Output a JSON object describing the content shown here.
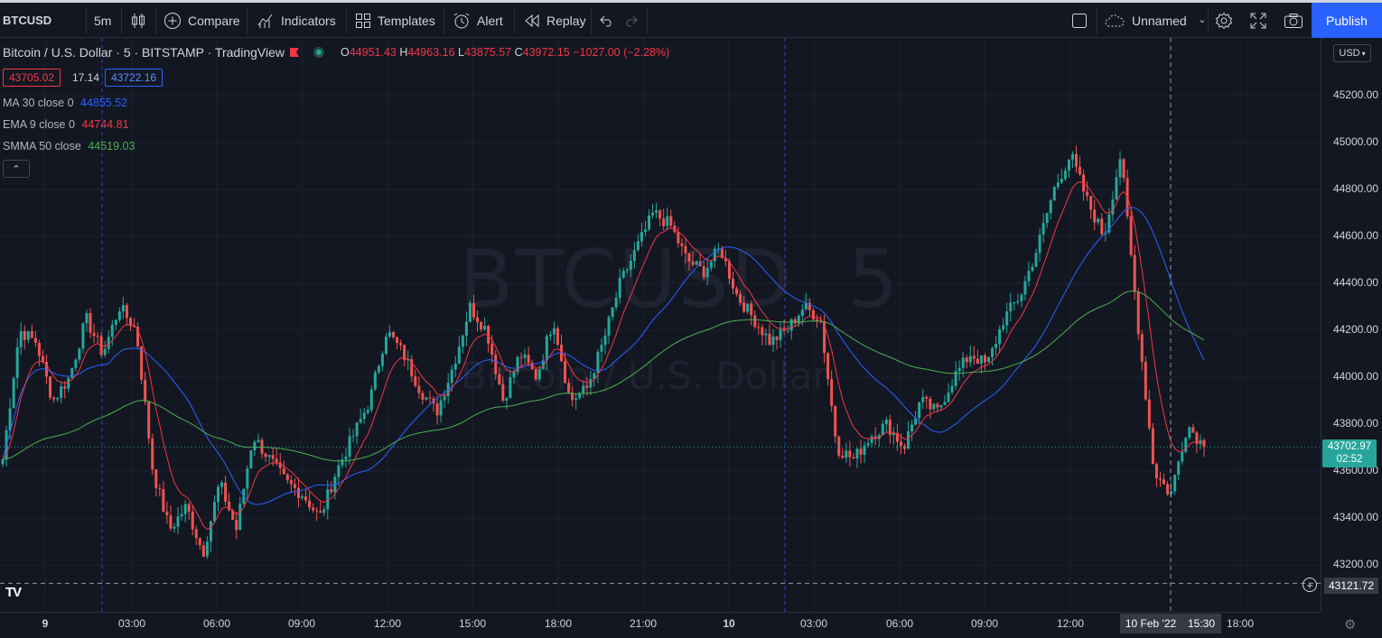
{
  "toolbar": {
    "symbol": "BTCUSD",
    "interval": "5m",
    "compare": "Compare",
    "indicators": "Indicators",
    "templates": "Templates",
    "alert": "Alert",
    "replay": "Replay",
    "layout_name": "Unnamed",
    "publish": "Publish"
  },
  "legend": {
    "title": "Bitcoin / U.S. Dollar · 5 · BITSTAMP · TradingView",
    "o_label": "O",
    "o": "44951.43",
    "h_label": "H",
    "h": "44963.16",
    "l_label": "L",
    "l": "43875.57",
    "c_label": "C",
    "c": "43972.15",
    "change": "−1027.00 (−2.28%)",
    "bid": "43705.02",
    "spread": "17.14",
    "ask": "43722.16"
  },
  "indicators": [
    {
      "label": "MA 30 close 0",
      "value": "44855.52",
      "color": "#2962ff"
    },
    {
      "label": "EMA 9 close 0",
      "value": "44744.81",
      "color": "#f23645"
    },
    {
      "label": "SMMA 50 close",
      "value": "44519.03",
      "color": "#4caf50"
    }
  ],
  "watermark": {
    "symbol": "BTCUSD, 5",
    "name": "Bitcoin / U.S. Dollar"
  },
  "price_axis": {
    "currency": "USD",
    "ticks": [
      "45200.00",
      "45000.00",
      "44800.00",
      "44600.00",
      "44400.00",
      "44200.00",
      "44000.00",
      "43800.00",
      "43600.00",
      "43400.00",
      "43200.00"
    ],
    "current_price": "43702.97",
    "countdown": "02:52",
    "crosshair_price": "43121.72"
  },
  "time_axis": {
    "ticks": [
      "9",
      "03:00",
      "06:00",
      "09:00",
      "12:00",
      "15:00",
      "18:00",
      "21:00",
      "10",
      "03:00",
      "06:00",
      "09:00",
      "12:00",
      "18:00"
    ],
    "crosshair_date": "10 Feb '22",
    "crosshair_time": "15:30"
  },
  "colors": {
    "up": "#26a69a",
    "down": "#ef5350",
    "background": "#131722",
    "accent": "#2962ff"
  },
  "chart_data": {
    "type": "candlestick",
    "ylim": [
      43100,
      45300
    ],
    "close_path": [
      43650,
      44200,
      44150,
      43900,
      44000,
      44250,
      44100,
      44300,
      44200,
      43600,
      43350,
      43450,
      43250,
      43550,
      43350,
      43750,
      43650,
      43550,
      43500,
      43400,
      43600,
      43750,
      43900,
      44200,
      44100,
      43950,
      43850,
      44050,
      44300,
      44200,
      43900,
      44100,
      44000,
      44250,
      43900,
      43950,
      44150,
      44400,
      44550,
      44700,
      44650,
      44500,
      44450,
      44550,
      44350,
      44250,
      44150,
      44200,
      44300,
      44250,
      43700,
      43650,
      43750,
      43800,
      43700,
      43900,
      43850,
      44000,
      44100,
      44050,
      44250,
      44350,
      44550,
      44800,
      44950,
      44750,
      44600,
      44950,
      44250,
      43600,
      43500,
      43800,
      43703
    ]
  }
}
